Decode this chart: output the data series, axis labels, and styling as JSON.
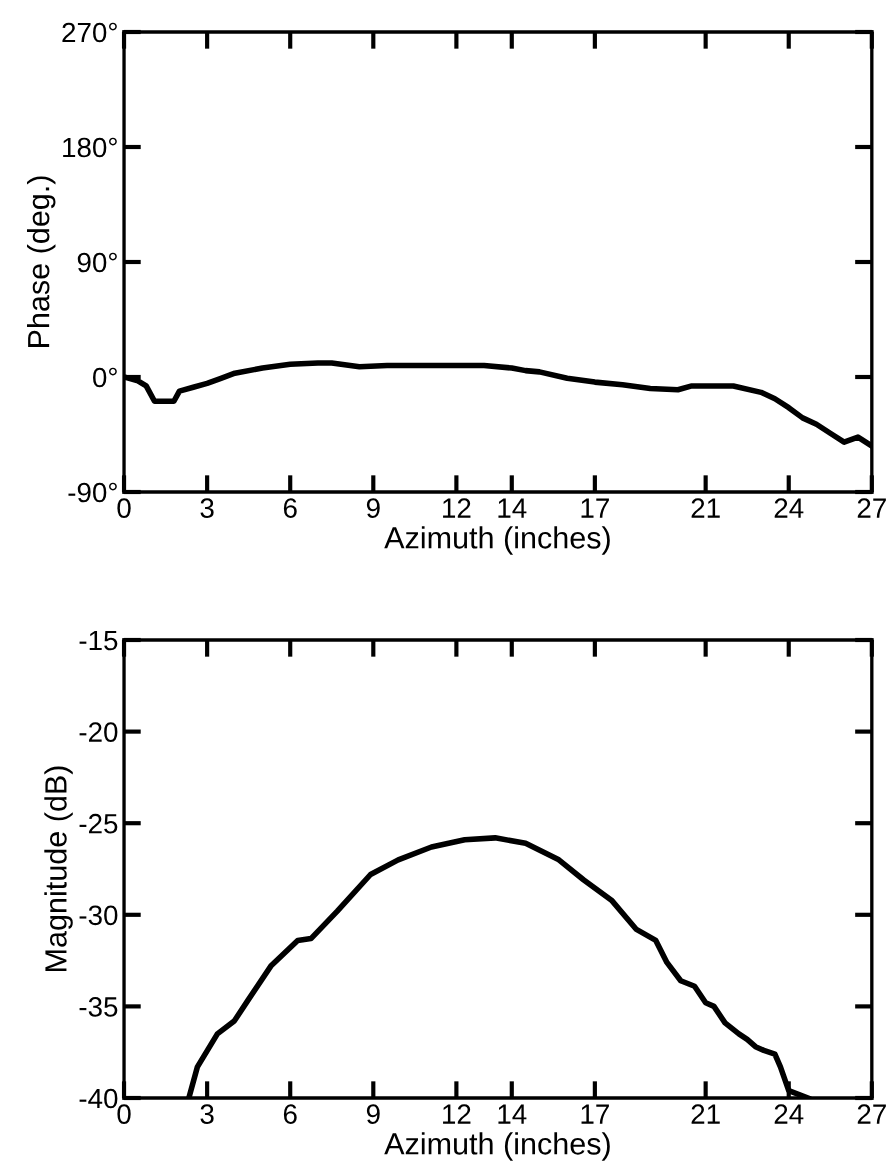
{
  "chart_data": [
    {
      "type": "line",
      "xlabel": "Azimuth (inches)",
      "ylabel": "Phase (deg.)",
      "xlim": [
        0,
        27
      ],
      "ylim": [
        -90,
        270
      ],
      "xticks": [
        0,
        3,
        6,
        9,
        12,
        14,
        17,
        21,
        24,
        27
      ],
      "yticks": [
        {
          "value": -90,
          "label": "-90°"
        },
        {
          "value": 0,
          "label": "0°"
        },
        {
          "value": 90,
          "label": "90°"
        },
        {
          "value": 180,
          "label": "180°"
        },
        {
          "value": 270,
          "label": "270°"
        }
      ],
      "grid": false,
      "legend": false,
      "series": [
        {
          "color": "#000000",
          "x": [
            0,
            0.5,
            0.8,
            1.1,
            1.8,
            2,
            2.5,
            3,
            3.5,
            4,
            5,
            6,
            7,
            7.5,
            8.5,
            9.5,
            12,
            13,
            14,
            14.5,
            15,
            16,
            17,
            18,
            19,
            20,
            20.5,
            21.5,
            22,
            23,
            23.5,
            24,
            24.5,
            25,
            25.5,
            26,
            26.5,
            27
          ],
          "values": [
            0,
            -3,
            -7,
            -19,
            -19,
            -11,
            -8,
            -5,
            -1,
            3,
            7,
            10,
            11,
            11,
            8,
            9,
            9,
            9,
            7,
            5,
            4,
            -1,
            -4,
            -6,
            -9,
            -10,
            -7,
            -7,
            -7,
            -12,
            -17,
            -24,
            -32,
            -37,
            -44,
            -51,
            -47,
            -54
          ]
        }
      ]
    },
    {
      "type": "line",
      "xlabel": "Azimuth (inches)",
      "ylabel": "Magnitude (dB)",
      "xlim": [
        0,
        27
      ],
      "ylim": [
        -40,
        -15
      ],
      "xticks": [
        0,
        3,
        6,
        9,
        12,
        14,
        17,
        21,
        24,
        27
      ],
      "yticks": [
        -40,
        -35,
        -30,
        -25,
        -20,
        -15
      ],
      "grid": false,
      "legend": false,
      "series": [
        {
          "color": "#000000",
          "x": [
            2.34,
            2.65,
            3.37,
            3.98,
            4.46,
            5.3,
            6.27,
            6.75,
            7.7,
            8.9,
            9.9,
            11.1,
            12.3,
            13.4,
            14.5,
            15.7,
            16.6,
            17.6,
            18.5,
            19.2,
            19.6,
            20.1,
            20.6,
            21.0,
            21.3,
            21.7,
            22.2,
            22.5,
            22.8,
            23.1,
            23.5,
            23.7,
            24.0,
            24.7
          ],
          "values": [
            -40,
            -38.3,
            -36.5,
            -35.8,
            -34.7,
            -32.8,
            -31.4,
            -31.3,
            -29.8,
            -27.8,
            -27.0,
            -26.3,
            -25.9,
            -25.8,
            -26.1,
            -27.0,
            -28.1,
            -29.2,
            -30.8,
            -31.4,
            -32.6,
            -33.6,
            -33.9,
            -34.8,
            -35.0,
            -35.9,
            -36.5,
            -36.8,
            -37.2,
            -37.4,
            -37.6,
            -38.3,
            -39.6,
            -40
          ]
        }
      ]
    }
  ]
}
